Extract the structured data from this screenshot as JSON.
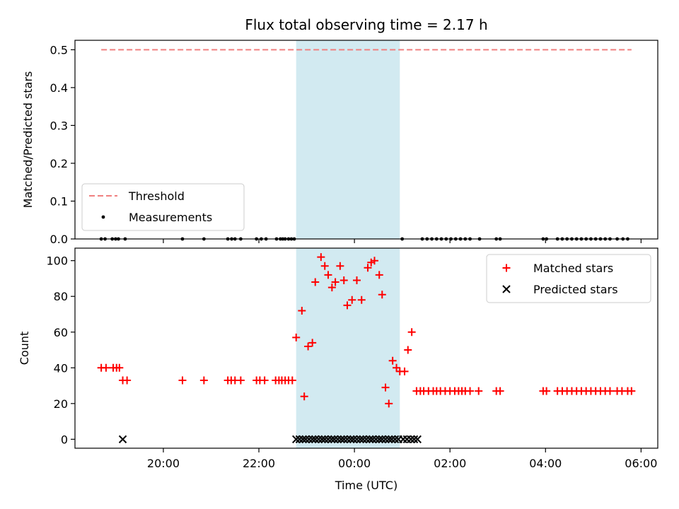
{
  "chart_data": {
    "type": "scatter",
    "title": "Flux total observing time = 2.17 h",
    "xlabel": "Time (UTC)",
    "x_unit": "hours relative to 00:00 UTC",
    "xlim": [
      -5.85,
      6.35
    ],
    "x_ticks": [
      {
        "value": -4,
        "label": "20:00"
      },
      {
        "value": -2,
        "label": "22:00"
      },
      {
        "value": 0,
        "label": "00:00"
      },
      {
        "value": 2,
        "label": "02:00"
      },
      {
        "value": 4,
        "label": "04:00"
      },
      {
        "value": 6,
        "label": "06:00"
      }
    ],
    "shaded_span": {
      "x_start": -1.22,
      "x_end": 0.95,
      "color": "#add8e6"
    },
    "top_panel": {
      "ylabel": "Matched/Predicted stars",
      "ylim": [
        0,
        0.525
      ],
      "y_ticks": [
        {
          "value": 0.0,
          "label": "0.0"
        },
        {
          "value": 0.1,
          "label": "0.1"
        },
        {
          "value": 0.2,
          "label": "0.2"
        },
        {
          "value": 0.3,
          "label": "0.3"
        },
        {
          "value": 0.4,
          "label": "0.4"
        },
        {
          "value": 0.5,
          "label": "0.5"
        }
      ],
      "threshold": {
        "name": "Threshold",
        "value": 0.5,
        "x_start": -5.3,
        "x_end": 5.8,
        "color": "#f08080"
      },
      "measurements": {
        "name": "Measurements",
        "color": "#000000",
        "x": [
          -5.3,
          -5.22,
          -5.07,
          -5.0,
          -4.94,
          -4.8,
          -3.6,
          -3.15,
          -2.65,
          -2.57,
          -2.5,
          -2.38,
          -2.05,
          -1.95,
          -1.85,
          -1.63,
          -1.55,
          -1.5,
          -1.45,
          -1.38,
          -1.32,
          -1.26,
          1.0,
          1.42,
          1.52,
          1.62,
          1.72,
          1.82,
          1.92,
          2.02,
          2.12,
          2.22,
          2.32,
          2.42,
          2.62,
          2.97,
          3.05,
          3.95,
          4.02,
          4.25,
          4.35,
          4.45,
          4.55,
          4.65,
          4.75,
          4.85,
          4.95,
          5.05,
          5.15,
          5.25,
          5.35,
          5.5,
          5.62,
          5.72
        ],
        "y": [
          0,
          0,
          0,
          0,
          0,
          0,
          0,
          0,
          0,
          0,
          0,
          0,
          0,
          0,
          0,
          0,
          0,
          0,
          0,
          0,
          0,
          0,
          0,
          0,
          0,
          0,
          0,
          0,
          0,
          0,
          0,
          0,
          0,
          0,
          0,
          0,
          0,
          0,
          0,
          0,
          0,
          0,
          0,
          0,
          0,
          0,
          0,
          0,
          0,
          0,
          0,
          0,
          0,
          0
        ]
      },
      "legend": {
        "placement": "lower-left",
        "entries": [
          "Threshold",
          "Measurements"
        ]
      }
    },
    "bottom_panel": {
      "ylabel": "Count",
      "ylim": [
        -5,
        107
      ],
      "y_ticks": [
        {
          "value": 0,
          "label": "0"
        },
        {
          "value": 20,
          "label": "20"
        },
        {
          "value": 40,
          "label": "40"
        },
        {
          "value": 60,
          "label": "60"
        },
        {
          "value": 80,
          "label": "80"
        },
        {
          "value": 100,
          "label": "100"
        }
      ],
      "series": [
        {
          "name": "Matched stars",
          "marker": "+",
          "color": "#ff0000",
          "x": [
            -5.3,
            -5.2,
            -5.05,
            -4.98,
            -4.92,
            -4.85,
            -4.76,
            -3.6,
            -3.15,
            -2.65,
            -2.58,
            -2.5,
            -2.38,
            -2.05,
            -1.98,
            -1.88,
            -1.65,
            -1.58,
            -1.52,
            -1.45,
            -1.38,
            -1.3,
            -1.22,
            -1.1,
            -1.05,
            -0.97,
            -0.88,
            -0.82,
            -0.7,
            -0.62,
            -0.55,
            -0.47,
            -0.4,
            -0.3,
            -0.22,
            -0.15,
            -0.05,
            0.05,
            0.15,
            0.28,
            0.35,
            0.42,
            0.52,
            0.58,
            0.65,
            0.72,
            0.8,
            0.88,
            0.95,
            1.05,
            1.12,
            1.2,
            1.3,
            1.38,
            1.45,
            1.55,
            1.65,
            1.72,
            1.8,
            1.9,
            2.0,
            2.1,
            2.18,
            2.25,
            2.32,
            2.42,
            2.6,
            2.97,
            3.05,
            3.95,
            4.02,
            4.25,
            4.35,
            4.45,
            4.55,
            4.65,
            4.75,
            4.85,
            4.95,
            5.05,
            5.15,
            5.25,
            5.35,
            5.5,
            5.6,
            5.72,
            5.8
          ],
          "values": [
            40,
            40,
            40,
            40,
            40,
            33,
            33,
            33,
            33,
            33,
            33,
            33,
            33,
            33,
            33,
            33,
            33,
            33,
            33,
            33,
            33,
            33,
            57,
            72,
            24,
            52,
            54,
            88,
            102,
            97,
            92,
            85,
            88,
            97,
            89,
            75,
            78,
            89,
            78,
            96,
            99,
            100,
            92,
            81,
            29,
            20,
            44,
            40,
            38,
            38,
            50,
            60,
            27,
            27,
            27,
            27,
            27,
            27,
            27,
            27,
            27,
            27,
            27,
            27,
            27,
            27,
            27,
            27,
            27,
            27,
            27,
            27,
            27,
            27,
            27,
            27,
            27,
            27,
            27,
            27,
            27,
            27,
            27,
            27,
            27,
            27,
            27
          ]
        },
        {
          "name": "Predicted stars",
          "marker": "x",
          "color": "#000000",
          "x": [
            -4.85,
            -1.22,
            -1.15,
            -1.08,
            -1.02,
            -0.95,
            -0.88,
            -0.82,
            -0.75,
            -0.68,
            -0.62,
            -0.55,
            -0.48,
            -0.42,
            -0.35,
            -0.28,
            -0.22,
            -0.15,
            -0.08,
            -0.02,
            0.05,
            0.12,
            0.18,
            0.25,
            0.32,
            0.38,
            0.45,
            0.52,
            0.58,
            0.65,
            0.72,
            0.78,
            0.85,
            0.92,
            1.02,
            1.1,
            1.18,
            1.25,
            1.32
          ],
          "values": [
            0,
            0,
            0,
            0,
            0,
            0,
            0,
            0,
            0,
            0,
            0,
            0,
            0,
            0,
            0,
            0,
            0,
            0,
            0,
            0,
            0,
            0,
            0,
            0,
            0,
            0,
            0,
            0,
            0,
            0,
            0,
            0,
            0,
            0,
            0,
            0,
            0,
            0,
            0
          ]
        }
      ],
      "legend": {
        "placement": "upper-right",
        "entries": [
          "Matched stars",
          "Predicted stars"
        ]
      }
    }
  }
}
